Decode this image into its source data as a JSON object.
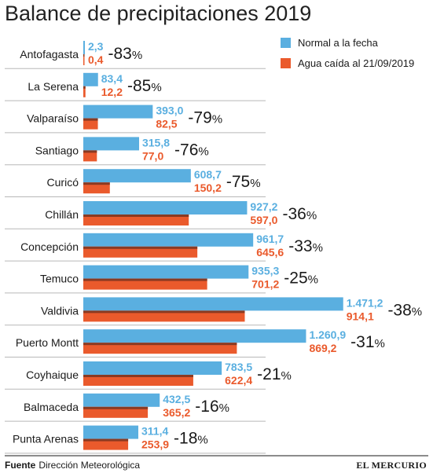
{
  "chart_data": {
    "type": "bar",
    "orientation": "horizontal",
    "title": "Balance de precipitaciones 2019",
    "categories": [
      "Antofagasta",
      "La Serena",
      "Valparaíso",
      "Santiago",
      "Curicó",
      "Chillán",
      "Concepción",
      "Temuco",
      "Valdivia",
      "Puerto Montt",
      "Coyhaique",
      "Balmaceda",
      "Punta Arenas"
    ],
    "series": [
      {
        "name": "Normal a la fecha",
        "color": "#5aafe0",
        "values": [
          2.3,
          83.4,
          393.0,
          315.8,
          608.7,
          927.2,
          961.7,
          935.3,
          1471.2,
          1260.9,
          783.5,
          432.5,
          311.4
        ],
        "labels": [
          "2,3",
          "83,4",
          "393,0",
          "315,8",
          "608,7",
          "927,2",
          "961,7",
          "935,3",
          "1.471,2",
          "1.260,9",
          "783,5",
          "432,5",
          "311,4"
        ]
      },
      {
        "name": "Agua caída al 21/09/2019",
        "color": "#ea5a2c",
        "values": [
          0.4,
          12.2,
          82.5,
          77.0,
          150.2,
          597.0,
          645.6,
          701.2,
          914.1,
          869.2,
          622.4,
          365.2,
          253.9
        ],
        "labels": [
          "0,4",
          "12,2",
          "82,5",
          "77,0",
          "150,2",
          "597,0",
          "645,6",
          "701,2",
          "914,1",
          "869,2",
          "622,4",
          "365,2",
          "253,9"
        ]
      }
    ],
    "differences": [
      "-83%",
      "-85%",
      "-79%",
      "-76%",
      "-75%",
      "-36%",
      "-33%",
      "-25%",
      "-38%",
      "-31%",
      "-21%",
      "-16%",
      "-18%"
    ],
    "xlim": [
      0,
      1500
    ],
    "legend_position": "top-right",
    "grid": false
  },
  "footer": {
    "source_label": "Fuente",
    "source_text": "Dirección Meteorológica",
    "brand": "EL MERCURIO"
  },
  "colors": {
    "normal": "#5aafe0",
    "fallen": "#ea5a2c",
    "fallen_shadow": "#8a3a22",
    "separator": "#b8b8b8"
  }
}
